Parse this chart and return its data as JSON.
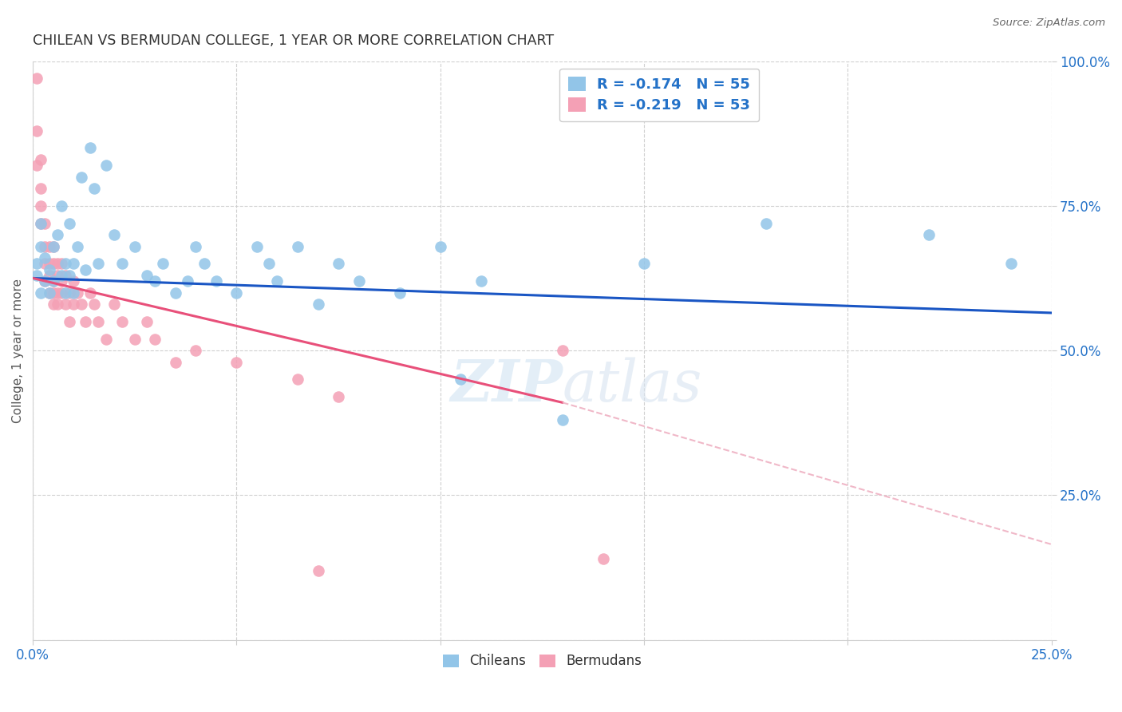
{
  "title": "CHILEAN VS BERMUDAN COLLEGE, 1 YEAR OR MORE CORRELATION CHART",
  "source": "Source: ZipAtlas.com",
  "ylabel": "College, 1 year or more",
  "xlim": [
    0.0,
    0.25
  ],
  "ylim": [
    0.0,
    1.0
  ],
  "chilean_R": -0.174,
  "chilean_N": 55,
  "bermudan_R": -0.219,
  "bermudan_N": 53,
  "chilean_color": "#92c5e8",
  "bermudan_color": "#f4a0b5",
  "trendline_chilean_color": "#1a56c4",
  "trendline_bermudan_color": "#e8507a",
  "trendline_bermudan_dashed_color": "#f0b8c8",
  "chilean_x": [
    0.001,
    0.001,
    0.002,
    0.002,
    0.002,
    0.003,
    0.003,
    0.004,
    0.004,
    0.005,
    0.005,
    0.006,
    0.007,
    0.007,
    0.008,
    0.008,
    0.009,
    0.009,
    0.01,
    0.01,
    0.011,
    0.012,
    0.013,
    0.014,
    0.015,
    0.016,
    0.018,
    0.02,
    0.022,
    0.025,
    0.028,
    0.03,
    0.032,
    0.035,
    0.038,
    0.04,
    0.042,
    0.045,
    0.05,
    0.055,
    0.058,
    0.06,
    0.065,
    0.07,
    0.075,
    0.08,
    0.09,
    0.1,
    0.105,
    0.11,
    0.13,
    0.15,
    0.18,
    0.22,
    0.24
  ],
  "chilean_y": [
    0.63,
    0.65,
    0.6,
    0.68,
    0.72,
    0.62,
    0.66,
    0.64,
    0.6,
    0.62,
    0.68,
    0.7,
    0.63,
    0.75,
    0.65,
    0.6,
    0.63,
    0.72,
    0.65,
    0.6,
    0.68,
    0.8,
    0.64,
    0.85,
    0.78,
    0.65,
    0.82,
    0.7,
    0.65,
    0.68,
    0.63,
    0.62,
    0.65,
    0.6,
    0.62,
    0.68,
    0.65,
    0.62,
    0.6,
    0.68,
    0.65,
    0.62,
    0.68,
    0.58,
    0.65,
    0.62,
    0.6,
    0.68,
    0.45,
    0.62,
    0.38,
    0.65,
    0.72,
    0.7,
    0.65
  ],
  "bermudan_x": [
    0.001,
    0.001,
    0.001,
    0.002,
    0.002,
    0.002,
    0.002,
    0.003,
    0.003,
    0.003,
    0.003,
    0.004,
    0.004,
    0.004,
    0.004,
    0.005,
    0.005,
    0.005,
    0.005,
    0.005,
    0.006,
    0.006,
    0.006,
    0.006,
    0.007,
    0.007,
    0.007,
    0.008,
    0.008,
    0.009,
    0.009,
    0.01,
    0.01,
    0.011,
    0.012,
    0.013,
    0.014,
    0.015,
    0.016,
    0.018,
    0.02,
    0.022,
    0.025,
    0.028,
    0.03,
    0.035,
    0.04,
    0.05,
    0.065,
    0.07,
    0.075,
    0.13,
    0.14
  ],
  "bermudan_y": [
    0.97,
    0.88,
    0.82,
    0.83,
    0.78,
    0.72,
    0.75,
    0.68,
    0.72,
    0.65,
    0.62,
    0.68,
    0.63,
    0.6,
    0.65,
    0.62,
    0.65,
    0.6,
    0.58,
    0.68,
    0.63,
    0.6,
    0.65,
    0.58,
    0.62,
    0.6,
    0.65,
    0.58,
    0.63,
    0.6,
    0.55,
    0.62,
    0.58,
    0.6,
    0.58,
    0.55,
    0.6,
    0.58,
    0.55,
    0.52,
    0.58,
    0.55,
    0.52,
    0.55,
    0.52,
    0.48,
    0.5,
    0.48,
    0.45,
    0.12,
    0.42,
    0.5,
    0.14
  ],
  "trendline_blue_x0": 0.0,
  "trendline_blue_x1": 0.25,
  "trendline_blue_y0": 0.625,
  "trendline_blue_y1": 0.565,
  "trendline_pink_x0": 0.0,
  "trendline_pink_x1": 0.13,
  "trendline_pink_y0": 0.625,
  "trendline_pink_y1": 0.41,
  "trendline_pink_dash_x0": 0.13,
  "trendline_pink_dash_x1": 0.25,
  "trendline_pink_dash_y0": 0.41,
  "trendline_pink_dash_y1": 0.165
}
